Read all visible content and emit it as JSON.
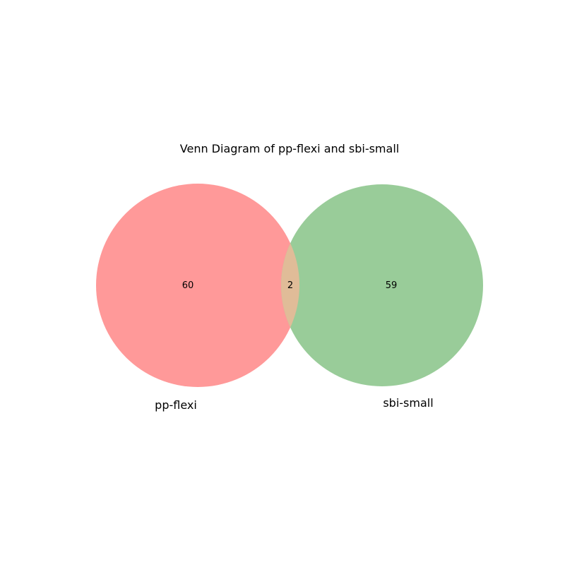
{
  "chart_data": {
    "type": "venn",
    "title": "Venn Diagram of pp-flexi and sbi-small",
    "sets": [
      {
        "name": "pp-flexi",
        "only_count": "60",
        "color": "#ff9999"
      },
      {
        "name": "sbi-small",
        "only_count": "59",
        "color": "#99cc99"
      }
    ],
    "intersection": {
      "count": "2",
      "color": "#e0bc98"
    }
  }
}
